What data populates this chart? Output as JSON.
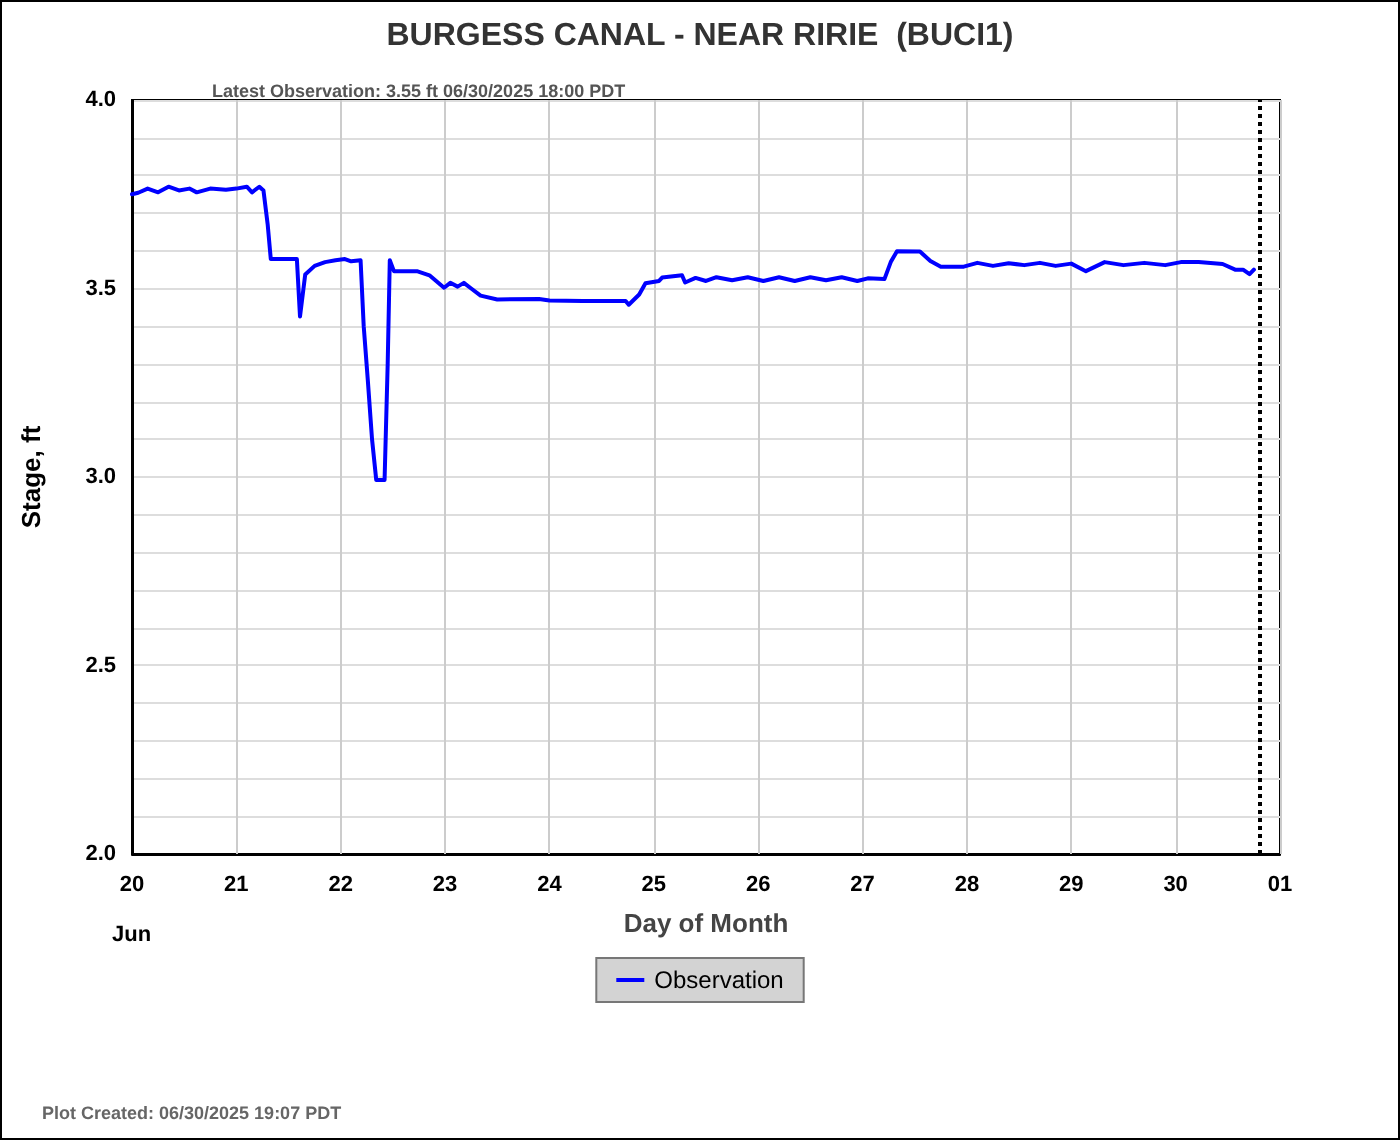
{
  "chart_data": {
    "type": "line",
    "title": "BURGESS CANAL - NEAR RIRIE  (BUCI1)",
    "subtitle": "Latest Observation: 3.55 ft 06/30/2025 18:00 PDT",
    "xlabel": "Day of Month",
    "ylabel": "Stage, ft",
    "annotations": [
      "Jun",
      "Plot Created: 06/30/2025 19:07 PDT"
    ],
    "xlim": [
      "2025-06-20T00:00",
      "2025-07-01T00:00"
    ],
    "xticks": [
      {
        "value": "2025-06-20",
        "label": "20"
      },
      {
        "value": "2025-06-21",
        "label": "21"
      },
      {
        "value": "2025-06-22",
        "label": "22"
      },
      {
        "value": "2025-06-23",
        "label": "23"
      },
      {
        "value": "2025-06-24",
        "label": "24"
      },
      {
        "value": "2025-06-25",
        "label": "25"
      },
      {
        "value": "2025-06-26",
        "label": "26"
      },
      {
        "value": "2025-06-27",
        "label": "27"
      },
      {
        "value": "2025-06-28",
        "label": "28"
      },
      {
        "value": "2025-06-29",
        "label": "29"
      },
      {
        "value": "2025-06-30",
        "label": "30"
      },
      {
        "value": "2025-07-01",
        "label": "01"
      }
    ],
    "ylim": [
      2,
      4
    ],
    "yticks": [
      {
        "value": 2,
        "label": "2.0"
      },
      {
        "value": 2.1,
        "label": null
      },
      {
        "value": 2.2,
        "label": null
      },
      {
        "value": 2.3,
        "label": null
      },
      {
        "value": 2.4,
        "label": null
      },
      {
        "value": 2.5,
        "label": "2.5"
      },
      {
        "value": 2.6,
        "label": null
      },
      {
        "value": 2.7,
        "label": null
      },
      {
        "value": 2.8,
        "label": null
      },
      {
        "value": 2.9,
        "label": null
      },
      {
        "value": 3,
        "label": "3.0"
      },
      {
        "value": 3.1,
        "label": null
      },
      {
        "value": 3.2,
        "label": null
      },
      {
        "value": 3.3,
        "label": null
      },
      {
        "value": 3.4,
        "label": null
      },
      {
        "value": 3.5,
        "label": "3.5"
      },
      {
        "value": 3.6,
        "label": null
      },
      {
        "value": 3.7,
        "label": null
      },
      {
        "value": 3.8,
        "label": null
      },
      {
        "value": 3.9,
        "label": null
      },
      {
        "value": 4,
        "label": "4.0"
      }
    ],
    "grid": true,
    "legend": "bottom",
    "marker": "none",
    "line_style": "solid",
    "ref_lines": [
      {
        "axis": "x",
        "value": "2025-06-30T19:07",
        "color": "#000000",
        "line_style": "dotted"
      }
    ],
    "series": [
      {
        "name": "Observation",
        "color": "#0000ff",
        "x": [
          "2025-06-20T00:00",
          "2025-06-20T01:26",
          "2025-06-20T03:36",
          "2025-06-20T06:00",
          "2025-06-20T08:24",
          "2025-06-20T10:48",
          "2025-06-20T13:12",
          "2025-06-20T14:53",
          "2025-06-20T18:00",
          "2025-06-20T21:36",
          "2025-06-21T00:00",
          "2025-06-21T02:24",
          "2025-06-21T03:36",
          "2025-06-21T05:17",
          "2025-06-21T06:14",
          "2025-06-21T07:12",
          "2025-06-21T07:55",
          "2025-06-21T13:55",
          "2025-06-21T14:38",
          "2025-06-21T15:50",
          "2025-06-21T18:00",
          "2025-06-21T20:24",
          "2025-06-21T22:48",
          "2025-06-22T00:58",
          "2025-06-22T02:24",
          "2025-06-22T04:34",
          "2025-06-22T05:17",
          "2025-06-22T06:14",
          "2025-06-22T07:12",
          "2025-06-22T08:10",
          "2025-06-22T10:05",
          "2025-06-22T10:48",
          "2025-06-22T11:17",
          "2025-06-22T12:14",
          "2025-06-22T17:31",
          "2025-06-22T20:24",
          "2025-06-22T23:46",
          "2025-06-23T01:12",
          "2025-06-23T02:53",
          "2025-06-23T04:19",
          "2025-06-23T06:00",
          "2025-06-23T08:10",
          "2025-06-23T12:00",
          "2025-06-23T21:36",
          "2025-06-24T00:00",
          "2025-06-24T07:41",
          "2025-06-24T17:31",
          "2025-06-24T18:14",
          "2025-06-24T20:38",
          "2025-06-24T22:05",
          "2025-06-25T01:12",
          "2025-06-25T01:55",
          "2025-06-25T06:29",
          "2025-06-25T07:12",
          "2025-06-25T09:36",
          "2025-06-25T12:00",
          "2025-06-25T14:24",
          "2025-06-25T18:00",
          "2025-06-25T21:36",
          "2025-06-26T01:12",
          "2025-06-26T04:48",
          "2025-06-26T08:24",
          "2025-06-26T12:00",
          "2025-06-26T15:36",
          "2025-06-26T19:12",
          "2025-06-26T22:48",
          "2025-06-27T01:12",
          "2025-06-27T05:02",
          "2025-06-27T06:29",
          "2025-06-27T07:55",
          "2025-06-27T13:12",
          "2025-06-27T15:36",
          "2025-06-27T18:00",
          "2025-06-27T23:17",
          "2025-06-28T02:24",
          "2025-06-28T06:00",
          "2025-06-28T09:36",
          "2025-06-28T13:12",
          "2025-06-28T16:48",
          "2025-06-28T20:24",
          "2025-06-29T00:00",
          "2025-06-29T03:22",
          "2025-06-29T07:41",
          "2025-06-29T12:00",
          "2025-06-29T16:48",
          "2025-06-29T21:36",
          "2025-06-30T01:12",
          "2025-06-30T05:17",
          "2025-06-30T10:48",
          "2025-06-30T13:41",
          "2025-06-30T15:30",
          "2025-06-30T17:00",
          "2025-06-30T18:00"
        ],
        "values": [
          3.75,
          3.754,
          3.765,
          3.755,
          3.77,
          3.76,
          3.765,
          3.755,
          3.765,
          3.762,
          3.765,
          3.77,
          3.755,
          3.77,
          3.76,
          3.67,
          3.578,
          3.578,
          3.426,
          3.537,
          3.56,
          3.57,
          3.575,
          3.578,
          3.572,
          3.575,
          3.4,
          3.256,
          3.1,
          2.992,
          2.992,
          3.3,
          3.575,
          3.546,
          3.546,
          3.535,
          3.502,
          3.515,
          3.505,
          3.515,
          3.5,
          3.481,
          3.471,
          3.472,
          3.468,
          3.467,
          3.467,
          3.457,
          3.484,
          3.514,
          3.52,
          3.529,
          3.535,
          3.516,
          3.528,
          3.52,
          3.53,
          3.522,
          3.53,
          3.52,
          3.53,
          3.52,
          3.53,
          3.522,
          3.53,
          3.52,
          3.527,
          3.525,
          3.57,
          3.599,
          3.598,
          3.573,
          3.558,
          3.558,
          3.568,
          3.56,
          3.567,
          3.562,
          3.568,
          3.56,
          3.566,
          3.546,
          3.57,
          3.562,
          3.568,
          3.562,
          3.57,
          3.57,
          3.565,
          3.55,
          3.55,
          3.538,
          3.55
        ]
      }
    ]
  }
}
